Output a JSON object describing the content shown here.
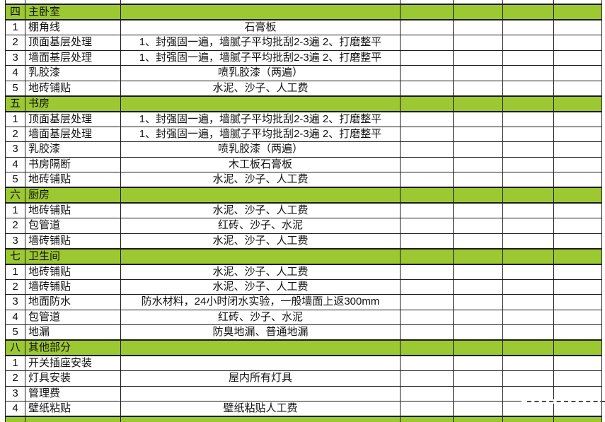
{
  "colors": {
    "section_row_bg": "#9cc832",
    "grid_border": "#1c1c1c",
    "page_break_dash": "#4a4a4a"
  },
  "table": {
    "trailing_empty_columns": 4,
    "sections": [
      {
        "no": "四",
        "name": "主卧室",
        "rows": [
          {
            "no": "1",
            "item": "棚角线",
            "desc": "石膏板"
          },
          {
            "no": "2",
            "item": "顶面基层处理",
            "desc": "1、封强固一遍，墙腻子平均批刮2-3遍 2、打磨整平"
          },
          {
            "no": "3",
            "item": "墙面基层处理",
            "desc": "1、封强固一遍，墙腻子平均批刮2-3遍 2、打磨整平"
          },
          {
            "no": "4",
            "item": "乳胶漆",
            "desc": "喷乳胶漆（两遍）"
          },
          {
            "no": "5",
            "item": "地砖铺贴",
            "desc": "水泥、沙子、人工费"
          }
        ]
      },
      {
        "no": "五",
        "name": "书房",
        "rows": [
          {
            "no": "1",
            "item": "顶面基层处理",
            "desc": "1、封强固一遍，墙腻子平均批刮2-3遍 2、打磨整平"
          },
          {
            "no": "2",
            "item": "墙面基层处理",
            "desc": "1、封强固一遍，墙腻子平均批刮2-3遍 2、打磨整平"
          },
          {
            "no": "3",
            "item": "乳胶漆",
            "desc": "喷乳胶漆（两遍）"
          },
          {
            "no": "4",
            "item": "书房隔断",
            "desc": "木工板石膏板"
          },
          {
            "no": "5",
            "item": "地砖铺贴",
            "desc": "水泥、沙子、人工费"
          }
        ]
      },
      {
        "no": "六",
        "name": "厨房",
        "rows": [
          {
            "no": "1",
            "item": "地砖铺贴",
            "desc": "水泥、沙子、人工费"
          },
          {
            "no": "2",
            "item": "包管道",
            "desc": "红砖、沙子、水泥"
          },
          {
            "no": "3",
            "item": "墙砖铺贴",
            "desc": "水泥、沙子、人工费"
          }
        ]
      },
      {
        "no": "七",
        "name": "卫生间",
        "rows": [
          {
            "no": "1",
            "item": "地砖铺贴",
            "desc": "水泥、沙子、人工费"
          },
          {
            "no": "2",
            "item": "墙砖铺贴",
            "desc": "水泥、沙子、人工费"
          },
          {
            "no": "3",
            "item": "地面防水",
            "desc": "防水材料，24小时闭水实验，一般墙面上返300mm"
          },
          {
            "no": "4",
            "item": "包管道",
            "desc": "红砖、沙子、水泥"
          },
          {
            "no": "5",
            "item": "地漏",
            "desc": "防臭地漏、普通地漏"
          }
        ]
      },
      {
        "no": "八",
        "name": "其他部分",
        "rows": [
          {
            "no": "1",
            "item": "开关插座安装",
            "desc": ""
          },
          {
            "no": "2",
            "item": "灯具安装",
            "desc": "屋内所有灯具"
          },
          {
            "no": "3",
            "item": "管理费",
            "desc": ""
          },
          {
            "no": "4",
            "item": "壁纸粘贴",
            "desc": "壁纸粘贴人工费"
          }
        ]
      }
    ]
  }
}
